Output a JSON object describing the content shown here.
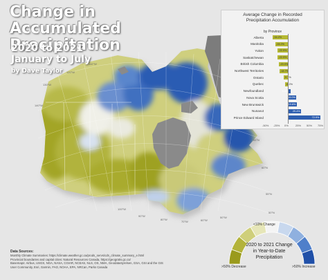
{
  "title_line1": "Change in Accumulated",
  "title_line2": "Precipitation",
  "subtitle_line1": "2020 to 2021",
  "subtitle_line2": "January to July",
  "byline": "by Dave Taylor",
  "chart_panel": {
    "title_line1": "Average Change in Recorded",
    "title_line2": "Precipitation Accumulation",
    "title_line3": "by Province"
  },
  "chart_data": {
    "type": "bar",
    "orientation": "horizontal",
    "title": "Average Change in Recorded Precipitation Accumulation by Province",
    "categories": [
      "Alberta",
      "Manitoba",
      "Yukon",
      "Saskatchewan",
      "British Columbia",
      "Northwest Territories",
      "Ontario",
      "Quebec",
      "Newfoundland",
      "Nova Scotia",
      "New Brunswick",
      "Nunavut",
      "Prince Edward Island"
    ],
    "values": [
      -34.2,
      -28.2,
      -22.9,
      -22.9,
      -20.0,
      -18.7,
      -9.7,
      -6.2,
      5.8,
      19.0,
      19.6,
      29.4,
      72.9
    ],
    "value_labels": [
      "-34.2%",
      "-28.2%",
      "-22.9%",
      "-22.9%",
      "-20.0%",
      "-18.7%",
      "-9.7%",
      "-6.2%",
      "5.8%",
      "19.0%",
      "19.6%",
      "29.4%",
      "72.9%"
    ],
    "xlim": [
      -50,
      75
    ],
    "xticks": [
      "-50%",
      "-25%",
      "0%",
      "25%",
      "50%",
      "75%"
    ],
    "negative_color": "#b5b832",
    "positive_color": "#2f5fb0"
  },
  "graticule": {
    "lat_labels": [
      "75°N",
      "70°N",
      "65°N",
      "60°N",
      "55°N",
      "50°N",
      "45°N"
    ],
    "lon_labels": [
      "140°W",
      "130°W",
      "120°W",
      "110°W",
      "100°W",
      "90°W",
      "80°W",
      "70°W",
      "60°W",
      "50°W"
    ]
  },
  "legend": {
    "title_line1": "2020 to 2021 Change",
    "title_line2": "in Year-to-Date Precipitation",
    "low_label": ">50% Decrease",
    "mid_label": "<10% Change",
    "high_label": ">50% Increase",
    "colors": [
      "#9a9a1c",
      "#b3b33a",
      "#cfcf7a",
      "#e6e6b8",
      "#f4f4f4",
      "#c8d8ee",
      "#8fb0df",
      "#4f7fca",
      "#2050a8"
    ]
  },
  "sources": {
    "heading": "Data Sources:",
    "lines": [
      "Monthly Climate Summaries: https://climate.weather.gc.ca/prods_servs/cdn_climate_summary_e.html",
      "Provincial boundaries and capital cities: Natural Resources Canada, https://geogratis.gc.ca/",
      "Basemaps: Airbus, USGS, NGA, NASA, CGIAR, NCEAS, NLS, OS, NMA, Geodatastyrelsen, GSA, GSI and the GIS",
      "User Community, Esri, Garmin, FAO, NOAA, EPA, NRCan, Parks Canada"
    ]
  }
}
